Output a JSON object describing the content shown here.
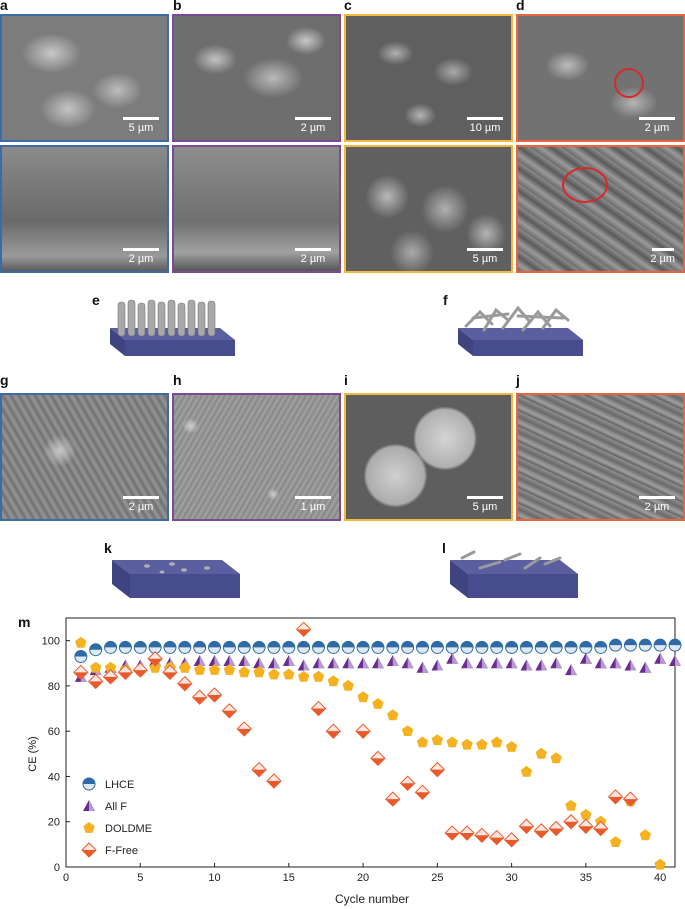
{
  "panel_labels": {
    "a": "a",
    "b": "b",
    "c": "c",
    "d": "d",
    "e": "e",
    "f": "f",
    "g": "g",
    "h": "h",
    "i": "i",
    "j": "j",
    "k": "k",
    "l": "l",
    "m": "m"
  },
  "colors": {
    "lhce": "#2e6aa6",
    "allf": "#6b2c91",
    "doldme": "#f4b222",
    "ffree": "#e85a2c",
    "frame_blue": "#3e6aa8",
    "frame_purple": "#7b4a93",
    "frame_yellow": "#f2b93b",
    "frame_orange": "#e8643a"
  },
  "scalebars": {
    "a_top": "5 µm",
    "b_top": "2 µm",
    "c_top": "10 µm",
    "d_top": "2 µm",
    "a_bot": "2 µm",
    "b_bot": "2 µm",
    "c_bot": "5 µm",
    "d_bot": "2 µm",
    "g": "2 µm",
    "h": "1 µm",
    "i": "5 µm",
    "j": "2 µm"
  },
  "chart_data": {
    "type": "scatter",
    "xlabel": "Cycle number",
    "ylabel": "CE (%)",
    "xlim": [
      0,
      41
    ],
    "ylim": [
      0,
      110
    ],
    "xticks": [
      "0",
      "5",
      "10",
      "15",
      "20",
      "25",
      "30",
      "35",
      "40"
    ],
    "yticks": [
      "0",
      "20",
      "40",
      "60",
      "80",
      "100"
    ],
    "legend_position": "lower-left",
    "series": [
      {
        "name": "LHCE",
        "marker": "circle",
        "color": "#2e6aa6",
        "x": [
          1,
          2,
          3,
          4,
          5,
          6,
          7,
          8,
          9,
          10,
          11,
          12,
          13,
          14,
          15,
          16,
          17,
          18,
          19,
          20,
          21,
          22,
          23,
          24,
          25,
          26,
          27,
          28,
          29,
          30,
          31,
          32,
          33,
          34,
          35,
          36,
          37,
          38,
          39,
          40,
          41
        ],
        "y": [
          93,
          96,
          97,
          97,
          97,
          97,
          97,
          97,
          97,
          97,
          97,
          97,
          97,
          97,
          97,
          97,
          97,
          97,
          97,
          97,
          97,
          97,
          97,
          97,
          97,
          97,
          97,
          97,
          97,
          97,
          97,
          97,
          97,
          97,
          97,
          97,
          98,
          98,
          98,
          98,
          98
        ]
      },
      {
        "name": "All F",
        "marker": "triangle",
        "color": "#6b2c91",
        "x": [
          1,
          2,
          3,
          4,
          5,
          6,
          7,
          8,
          9,
          10,
          11,
          12,
          13,
          14,
          15,
          16,
          17,
          18,
          19,
          20,
          21,
          22,
          23,
          24,
          25,
          26,
          27,
          28,
          29,
          30,
          31,
          32,
          33,
          34,
          35,
          36,
          37,
          38,
          39,
          40,
          41
        ],
        "y": [
          84,
          87,
          88,
          89,
          89,
          91,
          90,
          90,
          91,
          91,
          91,
          91,
          90,
          90,
          91,
          89,
          90,
          90,
          90,
          90,
          90,
          91,
          90,
          88,
          89,
          92,
          90,
          90,
          90,
          90,
          89,
          89,
          90,
          87,
          92,
          90,
          90,
          89,
          88,
          92,
          91
        ]
      },
      {
        "name": "DOLDME",
        "marker": "pentagon",
        "color": "#f4b222",
        "x": [
          1,
          2,
          3,
          4,
          5,
          6,
          7,
          8,
          9,
          10,
          11,
          12,
          13,
          14,
          15,
          16,
          17,
          18,
          19,
          20,
          21,
          22,
          23,
          24,
          25,
          26,
          27,
          28,
          29,
          30,
          31,
          32,
          33,
          34,
          35,
          36,
          37,
          38,
          39,
          40
        ],
        "y": [
          99,
          88,
          88,
          87,
          87,
          88,
          88,
          88,
          87,
          87,
          87,
          86,
          86,
          85,
          85,
          84,
          84,
          82,
          80,
          75,
          72,
          67,
          60,
          55,
          56,
          55,
          54,
          54,
          55,
          53,
          42,
          50,
          48,
          27,
          23,
          20,
          11,
          29,
          14,
          1
        ]
      },
      {
        "name": "F-Free",
        "marker": "diamond",
        "color": "#e85a2c",
        "x": [
          1,
          2,
          3,
          4,
          5,
          6,
          7,
          8,
          9,
          10,
          11,
          12,
          13,
          14,
          16,
          17,
          18,
          20,
          21,
          22,
          23,
          24,
          25,
          26,
          27,
          28,
          29,
          30,
          31,
          32,
          33,
          34,
          35,
          36,
          37,
          38
        ],
        "y": [
          86,
          82,
          84,
          86,
          87,
          92,
          86,
          81,
          75,
          76,
          69,
          61,
          43,
          38,
          105,
          70,
          60,
          60,
          48,
          30,
          37,
          33,
          43,
          15,
          15,
          14,
          13,
          12,
          18,
          16,
          17,
          20,
          18,
          17,
          31,
          30
        ]
      }
    ]
  }
}
